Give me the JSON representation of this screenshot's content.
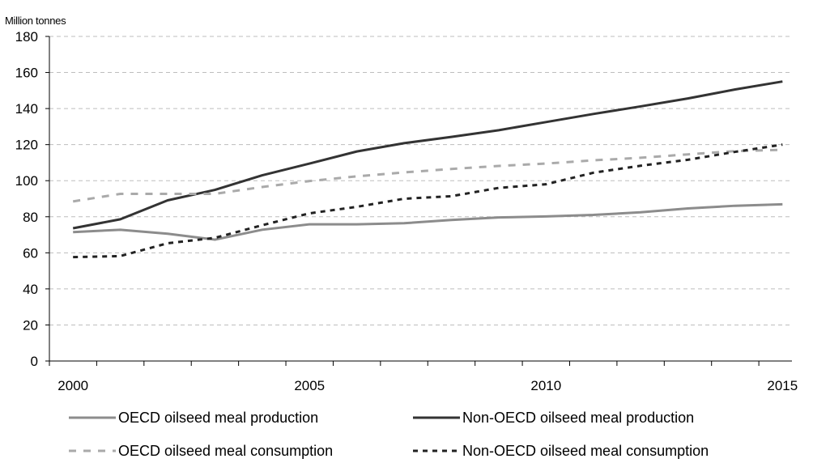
{
  "chart_data": {
    "type": "line",
    "unit_label": "Million tonnes",
    "x": [
      2000,
      2001,
      2002,
      2003,
      2004,
      2005,
      2006,
      2007,
      2008,
      2009,
      2010,
      2011,
      2012,
      2013,
      2014,
      2015
    ],
    "x_tick_labels": [
      "2000",
      "2005",
      "2010",
      "2015"
    ],
    "y_ticks": [
      0,
      20,
      40,
      60,
      80,
      100,
      120,
      140,
      160,
      180
    ],
    "ylim": [
      0,
      180
    ],
    "grid": "horizontal dashed",
    "legend_position": "bottom",
    "series": [
      {
        "name": "OECD oilseed meal production",
        "color": "#8c8c8c",
        "style": "solid",
        "values": [
          71.5,
          72.8,
          70.6,
          67.3,
          72.8,
          75.8,
          75.8,
          76.4,
          78.2,
          79.6,
          80.2,
          81,
          82.5,
          84.6,
          86.1,
          86.9
        ]
      },
      {
        "name": "Non-OECD oilseed meal production",
        "color": "#333333",
        "style": "solid",
        "values": [
          73.6,
          78.6,
          89.1,
          94.9,
          103,
          109.5,
          116.2,
          120.8,
          124.3,
          128,
          132.5,
          137,
          141.2,
          145.6,
          150.6,
          155
        ]
      },
      {
        "name": "OECD oilseed meal consumption",
        "color": "#aaaaaa",
        "style": "dashed",
        "values": [
          88.5,
          92.7,
          92.7,
          92.7,
          96.5,
          99.8,
          102.4,
          104.6,
          106.5,
          108.2,
          109.5,
          111.3,
          112.7,
          114.6,
          116.4,
          117.1
        ]
      },
      {
        "name": "Non-OECD oilseed meal consumption",
        "color": "#222222",
        "style": "dotted",
        "values": [
          57.6,
          58.2,
          65.3,
          68.3,
          75.3,
          81.9,
          85.5,
          90,
          91.4,
          96,
          98,
          104.4,
          108.3,
          111.6,
          116,
          120
        ]
      }
    ]
  }
}
